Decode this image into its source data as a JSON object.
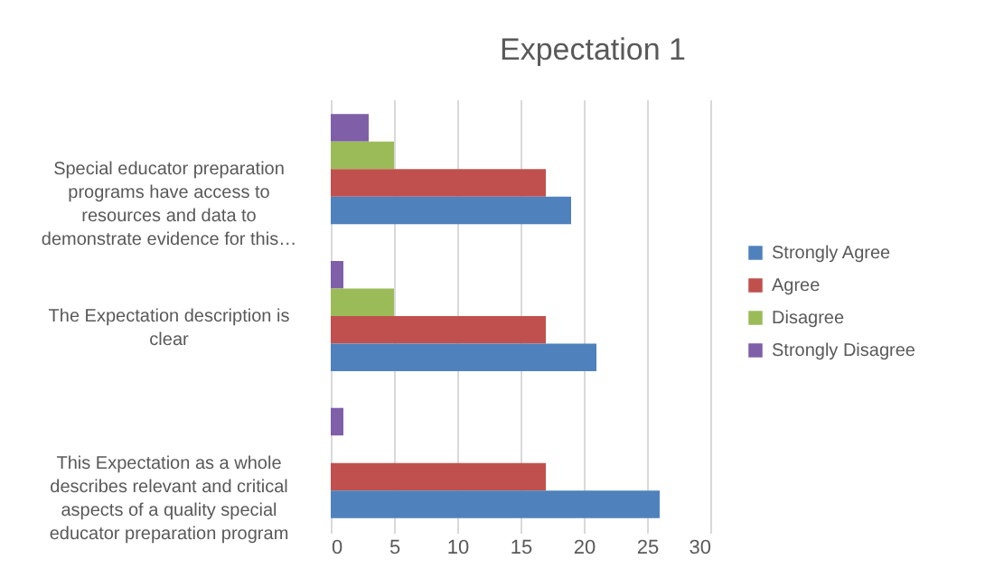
{
  "chart_data": {
    "type": "bar",
    "orientation": "horizontal",
    "title": "Expectation 1",
    "categories": [
      "Special educator preparation programs have access to resources and data to demonstrate evidence for this…",
      "The Expectation description is clear",
      "This Expectation as a whole describes relevant and critical aspects of a quality special educator preparation program"
    ],
    "series": [
      {
        "name": "Strongly Disagree",
        "color": "#7f5fa8",
        "values": [
          3,
          1,
          1
        ]
      },
      {
        "name": "Disagree",
        "color": "#9bbb59",
        "values": [
          5,
          5,
          0
        ]
      },
      {
        "name": "Agree",
        "color": "#c0504d",
        "values": [
          17,
          17,
          17
        ]
      },
      {
        "name": "Strongly Agree",
        "color": "#4f81bd",
        "values": [
          19,
          21,
          26
        ]
      }
    ],
    "xlim": [
      0,
      30
    ],
    "xticks": [
      0,
      5,
      10,
      15,
      20,
      25,
      30
    ],
    "grid": "x",
    "legend": "right"
  }
}
